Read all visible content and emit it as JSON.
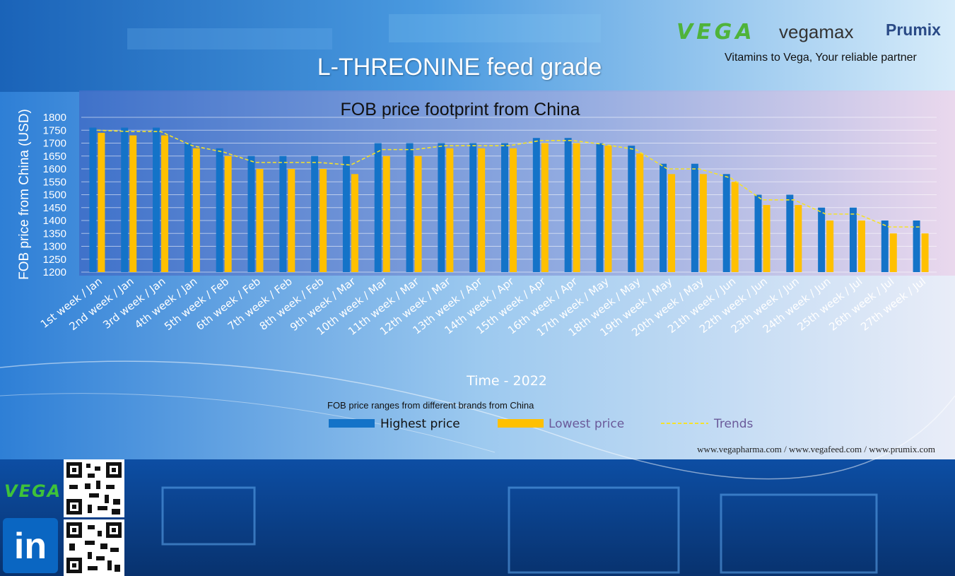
{
  "header": {
    "page_title": "L-THREONINE feed grade",
    "slogan": "Vitamins to Vega, Your reliable partner",
    "brands": [
      "VEGA",
      "vegamax",
      "Prumix"
    ]
  },
  "footer": {
    "urls": "www.vegapharma.com / www.vegafeed.com / www.prumix.com",
    "brand": "VEGA",
    "social_icon": "linkedin-icon",
    "linkedin_text": "in"
  },
  "colors": {
    "highest": "#1473c8",
    "lowest": "#ffc000",
    "trend": "#f5e22a",
    "plot_bg_left": "#3f6fc8",
    "plot_bg_right": "#e8d4ec"
  },
  "chart_data": {
    "type": "bar",
    "title": "FOB price footprint from China",
    "xlabel": "Time - 2022",
    "ylabel": "FOB price from China (USD)",
    "ylim": [
      1200,
      1800
    ],
    "yticks": [
      1200,
      1250,
      1300,
      1350,
      1400,
      1450,
      1500,
      1550,
      1600,
      1650,
      1700,
      1750,
      1800
    ],
    "grid": true,
    "legend_title": "FOB price ranges from different brands from China",
    "legend_position": "bottom",
    "categories": [
      "1st week / Jan",
      "2nd week / Jan",
      "3rd week / Jan",
      "4th week / Jan",
      "5th week / Feb",
      "6th week / Feb",
      "7th week / Feb",
      "8th week / Feb",
      "9th week / Mar",
      "10th week / Mar",
      "11th week / Mar",
      "12th week / Mar",
      "13th week / Apr",
      "14th week / Apr",
      "15th week / Apr",
      "16th week / Apr",
      "17th week / May",
      "18th week / May",
      "19th week / May",
      "20th week / May",
      "21th week / Jun",
      "22th week / Jun",
      "23th week / Jun",
      "24th week / Jun",
      "25th week / Jul",
      "26th week / Jul",
      "27th week / Jul"
    ],
    "series": [
      {
        "name": "Highest price",
        "values": [
          1760,
          1760,
          1760,
          1700,
          1680,
          1650,
          1650,
          1650,
          1650,
          1700,
          1700,
          1700,
          1700,
          1700,
          1720,
          1720,
          1700,
          1690,
          1620,
          1620,
          1580,
          1500,
          1500,
          1450,
          1450,
          1400,
          1400
        ]
      },
      {
        "name": "Lowest price",
        "values": [
          1740,
          1730,
          1730,
          1680,
          1650,
          1600,
          1600,
          1600,
          1580,
          1650,
          1650,
          1680,
          1680,
          1680,
          1700,
          1700,
          1690,
          1660,
          1580,
          1580,
          1550,
          1460,
          1460,
          1400,
          1400,
          1350,
          1350
        ]
      },
      {
        "name": "Trends",
        "values": [
          1750,
          1745,
          1745,
          1690,
          1665,
          1625,
          1625,
          1625,
          1615,
          1675,
          1675,
          1690,
          1690,
          1690,
          1710,
          1710,
          1695,
          1675,
          1600,
          1600,
          1565,
          1480,
          1480,
          1425,
          1425,
          1375,
          1375
        ]
      }
    ]
  }
}
